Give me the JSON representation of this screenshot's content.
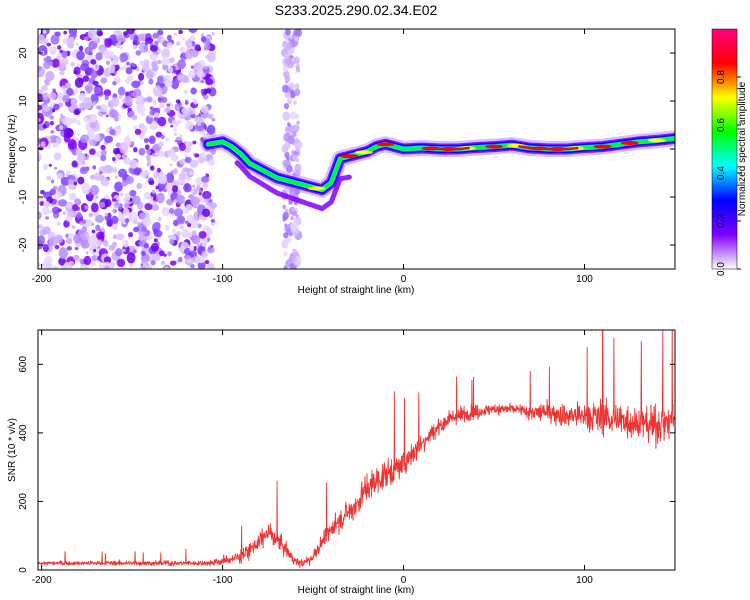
{
  "title": "S233.2025.290.02.34.E02",
  "chart_data": [
    {
      "type": "heatmap",
      "name": "spectrogram",
      "xlabel": "Height of straight line (km)",
      "ylabel": "Frequency (Hz)",
      "xlim": [
        -202,
        150
      ],
      "ylim": [
        -25,
        25
      ],
      "xticks": [
        -200,
        -100,
        0,
        100
      ],
      "yticks": [
        -20,
        -10,
        0,
        10,
        20
      ],
      "ridge": {
        "description": "Dominant frequency track (Hz) vs height (km)",
        "x": [
          -108,
          -100,
          -95,
          -90,
          -85,
          -80,
          -75,
          -70,
          -65,
          -60,
          -55,
          -50,
          -45,
          -40,
          -35,
          -30,
          -25,
          -20,
          -15,
          -10,
          -5,
          0,
          10,
          20,
          30,
          40,
          50,
          60,
          70,
          80,
          90,
          100,
          110,
          120,
          130,
          140,
          150
        ],
        "y": [
          1,
          1.5,
          0.5,
          -1,
          -3,
          -4,
          -5,
          -6,
          -6.5,
          -7,
          -7.5,
          -8,
          -8.5,
          -7,
          -2,
          -1.5,
          -1,
          -0.5,
          0.5,
          1,
          0.5,
          0,
          0.2,
          0,
          0,
          0.3,
          0.5,
          0.8,
          0.2,
          0,
          0,
          0.3,
          0.5,
          1,
          1.5,
          1.8,
          2.2
        ]
      },
      "colorbar": {
        "label": "Normalized spectral amplitude",
        "range": [
          0,
          1
        ],
        "ticks": [
          "0.0",
          "0.2",
          "0.4",
          "0.6",
          "0.8"
        ],
        "colors": [
          "#ffffff",
          "#7f00ff",
          "#0000ff",
          "#00ffff",
          "#00ff00",
          "#ffff00",
          "#ff0000",
          "#ff0080"
        ]
      }
    },
    {
      "type": "line",
      "name": "snr",
      "xlabel": "Height of straight line (km)",
      "ylabel": "SNR (10 * v/v)",
      "xlim": [
        -202,
        150
      ],
      "ylim": [
        0,
        700
      ],
      "xticks": [
        -200,
        -100,
        0,
        100
      ],
      "yticks": [
        0,
        200,
        400,
        600
      ],
      "color": "#ee3333",
      "envelope": {
        "x": [
          -202,
          -150,
          -110,
          -100,
          -90,
          -85,
          -80,
          -75,
          -70,
          -65,
          -60,
          -55,
          -50,
          -45,
          -40,
          -35,
          -30,
          -25,
          -20,
          -15,
          -10,
          -5,
          0,
          5,
          10,
          15,
          20,
          25,
          30,
          40,
          50,
          60,
          70,
          80,
          90,
          100,
          110,
          120,
          130,
          140,
          150
        ],
        "y": [
          20,
          20,
          20,
          25,
          40,
          60,
          80,
          110,
          90,
          60,
          25,
          20,
          40,
          80,
          120,
          150,
          170,
          200,
          240,
          260,
          280,
          290,
          310,
          340,
          370,
          400,
          420,
          440,
          450,
          460,
          470,
          470,
          460,
          460,
          450,
          450,
          445,
          440,
          430,
          420,
          440
        ]
      },
      "spread": {
        "x": [
          -202,
          -110,
          -90,
          -70,
          -60,
          -40,
          -20,
          0,
          20,
          40,
          60,
          80,
          100,
          120,
          150
        ],
        "y": [
          12,
          15,
          40,
          60,
          20,
          60,
          90,
          80,
          50,
          40,
          35,
          60,
          90,
          100,
          110
        ]
      },
      "peak_value": 700
    }
  ]
}
